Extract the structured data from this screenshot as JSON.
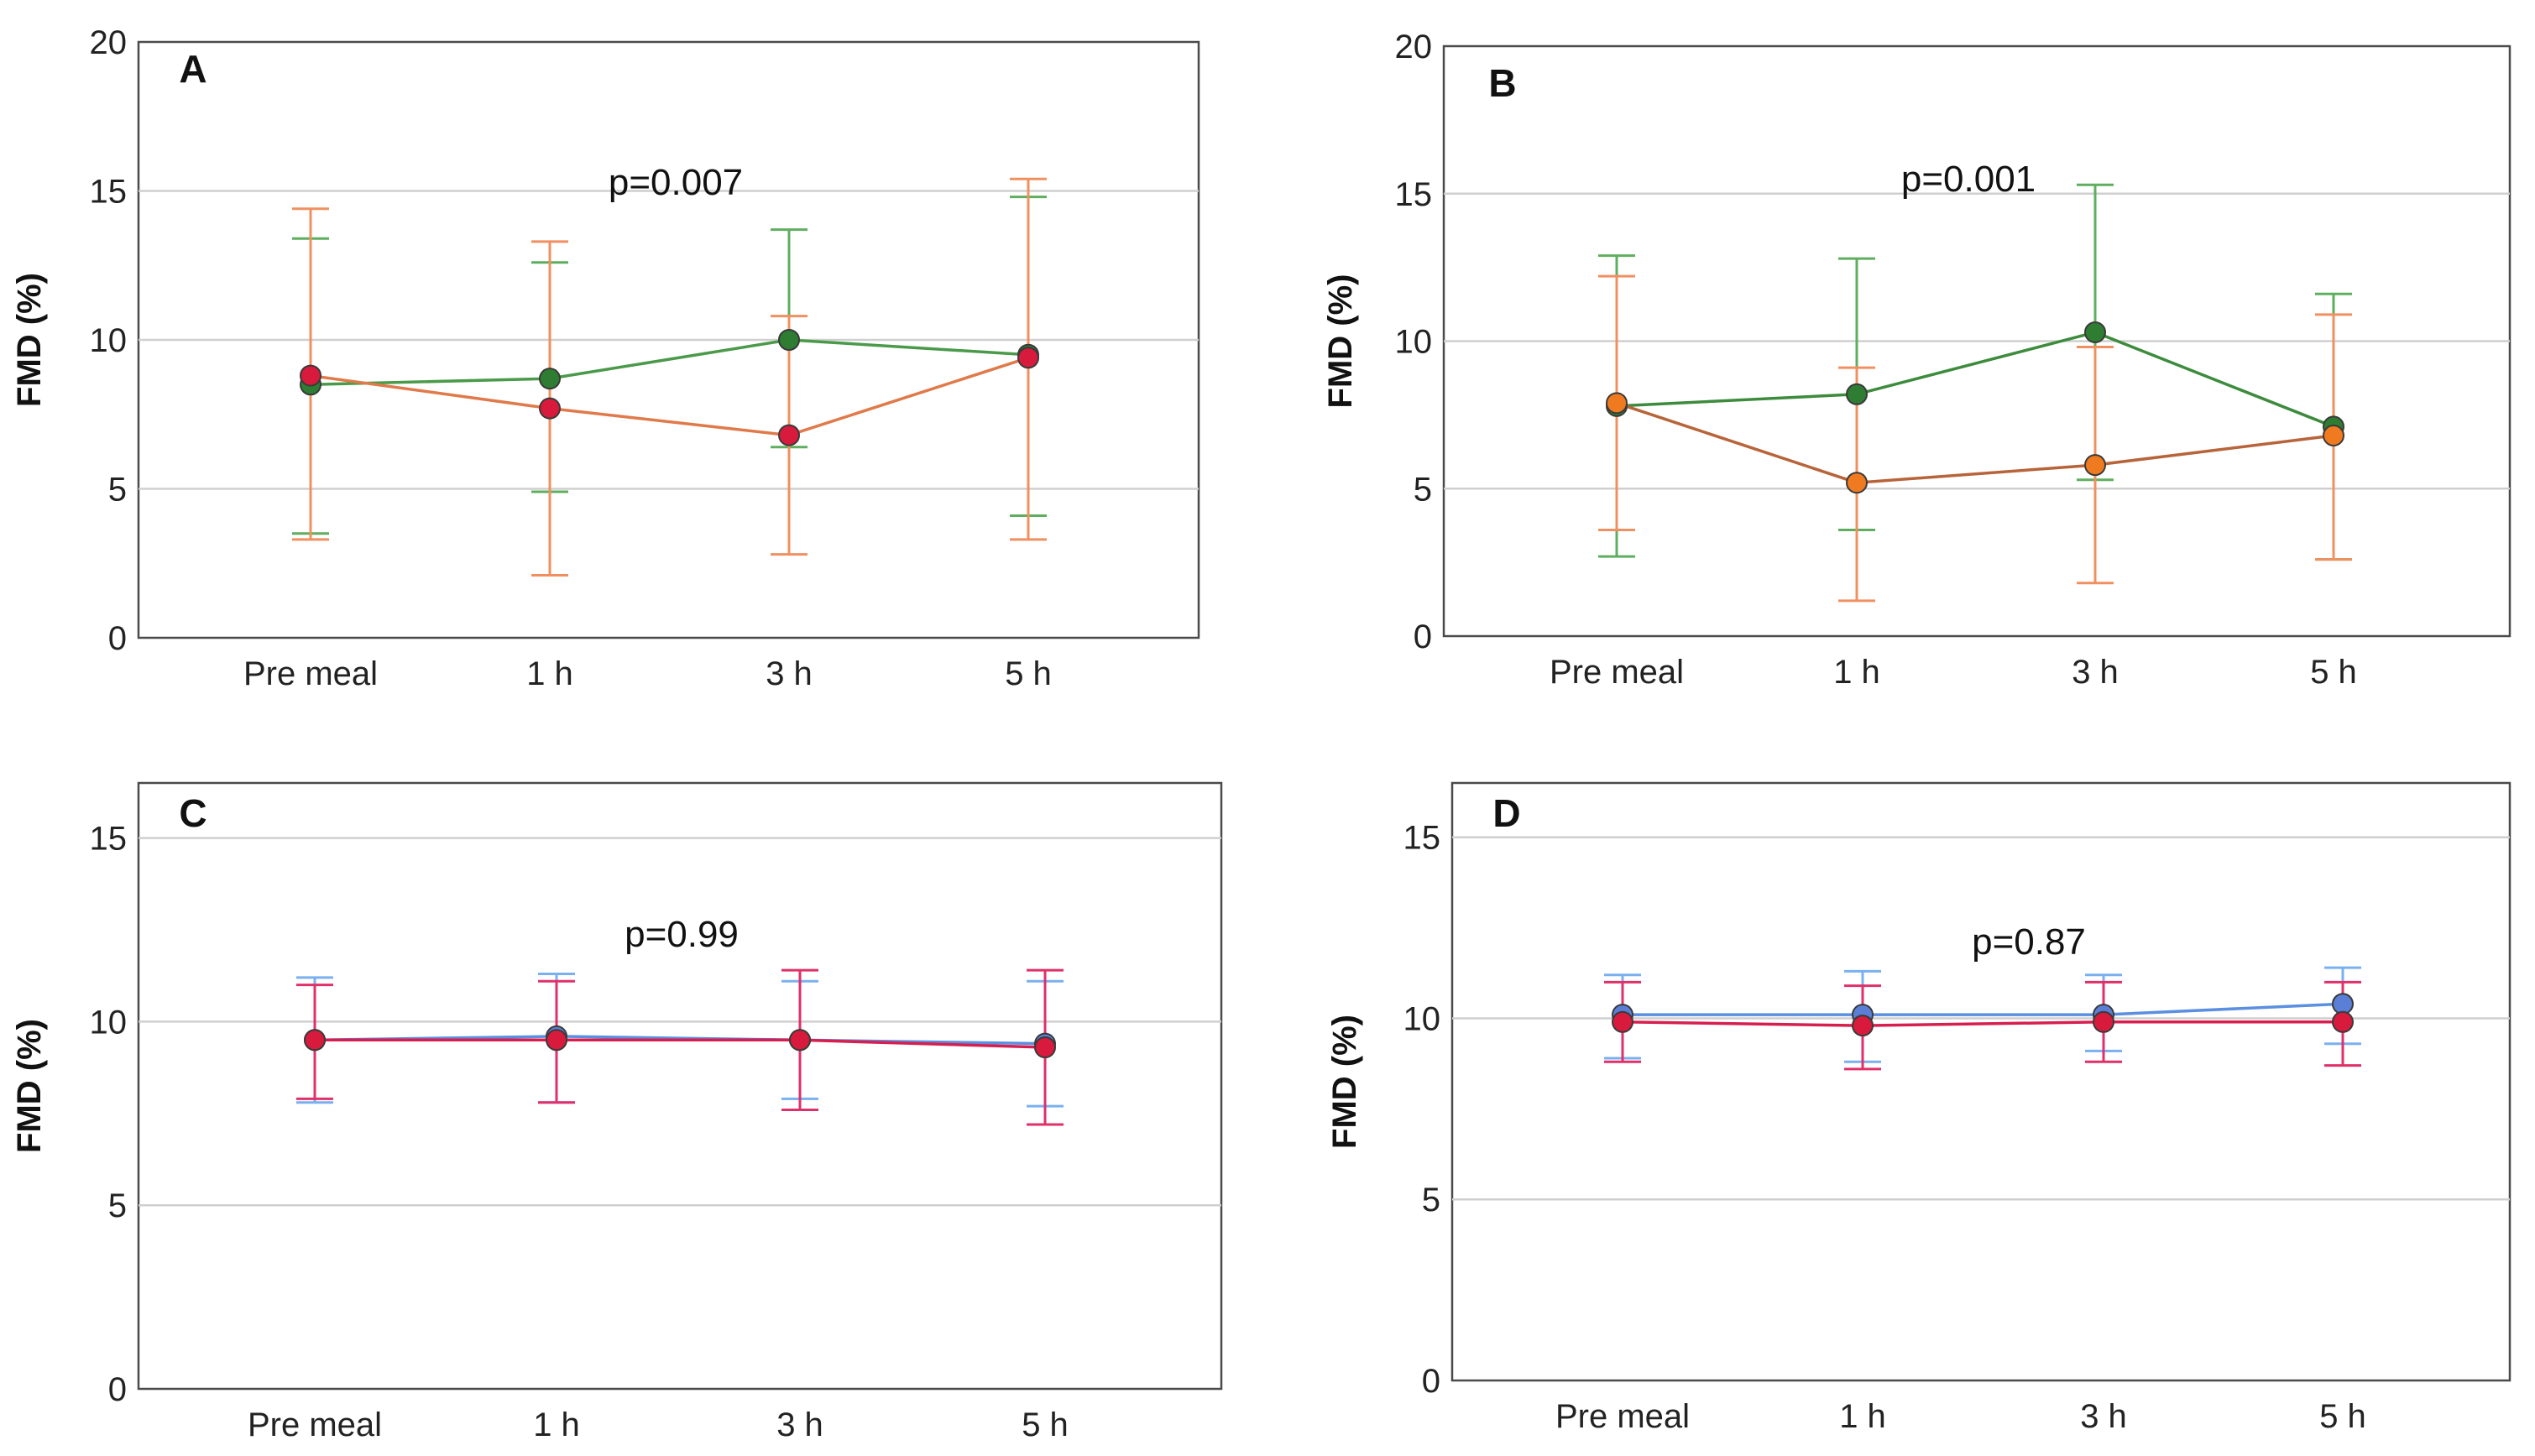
{
  "chart_data": [
    {
      "type": "line",
      "panel_label": "A",
      "annotation": "p=0.007",
      "ylabel": "FMD (%)",
      "categories": [
        "Pre meal",
        "1 h",
        "3 h",
        "5 h"
      ],
      "ylim": [
        0,
        20
      ],
      "yticks": [
        "0",
        "5",
        "10",
        "15",
        "20"
      ],
      "series": [
        {
          "name": "green",
          "line_color": "#4a9a4a",
          "err_color": "#5fae5f",
          "marker_color": "#2e7d32",
          "values": [
            8.5,
            8.7,
            10.0,
            9.5
          ],
          "lower": [
            3.5,
            4.9,
            6.4,
            4.1
          ],
          "upper": [
            13.4,
            12.6,
            13.7,
            14.8
          ]
        },
        {
          "name": "red",
          "line_color": "#e07a4a",
          "err_color": "#f09060",
          "marker_color": "#d81b3c",
          "values": [
            8.8,
            7.7,
            6.8,
            9.4
          ],
          "lower": [
            3.3,
            2.1,
            2.8,
            3.3
          ],
          "upper": [
            14.4,
            13.3,
            10.8,
            15.4
          ]
        }
      ]
    },
    {
      "type": "line",
      "panel_label": "B",
      "annotation": "p=0.001",
      "ylabel": "FMD (%)",
      "categories": [
        "Pre meal",
        "1 h",
        "3 h",
        "5 h"
      ],
      "ylim": [
        0,
        20
      ],
      "yticks": [
        "0",
        "5",
        "10",
        "15",
        "20"
      ],
      "series": [
        {
          "name": "green",
          "line_color": "#3d8b3d",
          "err_color": "#5fae5f",
          "marker_color": "#2e7d32",
          "values": [
            7.8,
            8.2,
            10.3,
            7.1
          ],
          "lower": [
            2.7,
            3.6,
            5.3,
            2.6
          ],
          "upper": [
            12.9,
            12.8,
            15.3,
            11.6
          ]
        },
        {
          "name": "orange",
          "line_color": "#b8643a",
          "err_color": "#f09060",
          "marker_color": "#f07a1f",
          "values": [
            7.9,
            5.2,
            5.8,
            6.8
          ],
          "lower": [
            3.6,
            1.2,
            1.8,
            2.6
          ],
          "upper": [
            12.2,
            9.1,
            9.8,
            10.9
          ]
        }
      ]
    },
    {
      "type": "line",
      "panel_label": "C",
      "annotation": "p=0.99",
      "ylabel": "FMD (%)",
      "categories": [
        "Pre meal",
        "1 h",
        "3 h",
        "5 h"
      ],
      "ylim": [
        0,
        16.5
      ],
      "yticks": [
        "0",
        "5",
        "10",
        "15"
      ],
      "series": [
        {
          "name": "blue",
          "line_color": "#5b8fe0",
          "err_color": "#7ab0f0",
          "marker_color": "#5b7fd6",
          "values": [
            9.5,
            9.6,
            9.5,
            9.4
          ],
          "lower": [
            7.8,
            7.8,
            7.9,
            7.7
          ],
          "upper": [
            11.2,
            11.3,
            11.1,
            11.1
          ]
        },
        {
          "name": "crimson",
          "line_color": "#d61f4f",
          "err_color": "#e0306a",
          "marker_color": "#d81b3c",
          "values": [
            9.5,
            9.5,
            9.5,
            9.3
          ],
          "lower": [
            7.9,
            7.8,
            7.6,
            7.2
          ],
          "upper": [
            11.0,
            11.1,
            11.4,
            11.4
          ]
        }
      ]
    },
    {
      "type": "line",
      "panel_label": "D",
      "annotation": "p=0.87",
      "ylabel": "FMD (%)",
      "categories": [
        "Pre meal",
        "1 h",
        "3 h",
        "5 h"
      ],
      "ylim": [
        0,
        16.5
      ],
      "yticks": [
        "0",
        "5",
        "10",
        "15"
      ],
      "series": [
        {
          "name": "blue",
          "line_color": "#5b8fe0",
          "err_color": "#7ab0f0",
          "marker_color": "#5b7fd6",
          "values": [
            10.1,
            10.1,
            10.1,
            10.4
          ],
          "lower": [
            8.9,
            8.8,
            9.1,
            9.3
          ],
          "upper": [
            11.2,
            11.3,
            11.2,
            11.4
          ]
        },
        {
          "name": "crimson",
          "line_color": "#d61f4f",
          "err_color": "#e0306a",
          "marker_color": "#d81b3c",
          "values": [
            9.9,
            9.8,
            9.9,
            9.9
          ],
          "lower": [
            8.8,
            8.6,
            8.8,
            8.7
          ],
          "upper": [
            11.0,
            10.9,
            11.0,
            11.0
          ]
        }
      ]
    }
  ]
}
